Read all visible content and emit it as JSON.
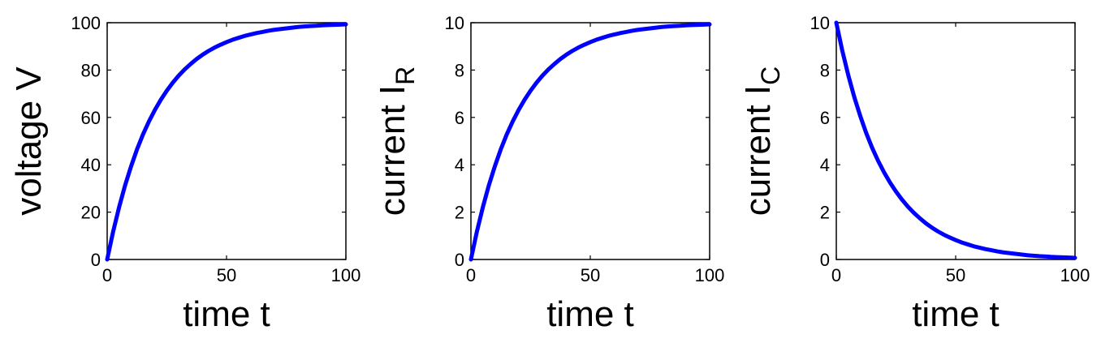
{
  "chart_data": [
    {
      "type": "line",
      "xlabel": "time t",
      "ylabel": "voltage V",
      "ylabel_subscript": "",
      "xlim": [
        0,
        100
      ],
      "ylim": [
        0,
        100
      ],
      "xticks": [
        "0",
        "50",
        "100"
      ],
      "yticks": [
        "0",
        "20",
        "40",
        "60",
        "80",
        "100"
      ],
      "grid": false,
      "color": "#0000ff",
      "series": [
        {
          "x": [
            0,
            2.5,
            5,
            7.5,
            10,
            12.5,
            15,
            17.5,
            20,
            22.5,
            25,
            27.5,
            30,
            32.5,
            35,
            37.5,
            40,
            42.5,
            45,
            47.5,
            50,
            52.5,
            55,
            57.5,
            60,
            62.5,
            65,
            67.5,
            70,
            72.5,
            75,
            77.5,
            80,
            82.5,
            85,
            87.5,
            90,
            92.5,
            95,
            97.5,
            100
          ],
          "y": [
            0,
            11.8,
            22.1,
            31.3,
            39.3,
            46.5,
            52.8,
            58.3,
            63.2,
            67.5,
            71.3,
            74.7,
            77.7,
            80.3,
            82.6,
            84.7,
            86.5,
            88.1,
            89.5,
            90.7,
            91.8,
            92.8,
            93.6,
            94.4,
            95.0,
            95.6,
            96.1,
            96.6,
            97.0,
            97.3,
            97.6,
            97.9,
            98.2,
            98.4,
            98.6,
            98.7,
            98.9,
            99.0,
            99.1,
            99.2,
            99.3
          ]
        }
      ]
    },
    {
      "type": "line",
      "xlabel": "time t",
      "ylabel": "current I",
      "ylabel_subscript": "R",
      "xlim": [
        0,
        100
      ],
      "ylim": [
        0,
        10
      ],
      "xticks": [
        "0",
        "50",
        "100"
      ],
      "yticks": [
        "0",
        "2",
        "4",
        "6",
        "8",
        "10"
      ],
      "grid": false,
      "color": "#0000ff",
      "series": [
        {
          "x": [
            0,
            2.5,
            5,
            7.5,
            10,
            12.5,
            15,
            17.5,
            20,
            22.5,
            25,
            27.5,
            30,
            32.5,
            35,
            37.5,
            40,
            42.5,
            45,
            47.5,
            50,
            52.5,
            55,
            57.5,
            60,
            62.5,
            65,
            67.5,
            70,
            72.5,
            75,
            77.5,
            80,
            82.5,
            85,
            87.5,
            90,
            92.5,
            95,
            97.5,
            100
          ],
          "y": [
            0,
            1.18,
            2.21,
            3.13,
            3.93,
            4.65,
            5.28,
            5.83,
            6.32,
            6.75,
            7.13,
            7.47,
            7.77,
            8.03,
            8.26,
            8.47,
            8.65,
            8.81,
            8.95,
            9.07,
            9.18,
            9.28,
            9.36,
            9.44,
            9.5,
            9.56,
            9.61,
            9.66,
            9.7,
            9.73,
            9.76,
            9.79,
            9.82,
            9.84,
            9.86,
            9.87,
            9.89,
            9.9,
            9.91,
            9.92,
            9.93
          ]
        }
      ]
    },
    {
      "type": "line",
      "xlabel": "time t",
      "ylabel": "current I",
      "ylabel_subscript": "C",
      "xlim": [
        0,
        100
      ],
      "ylim": [
        0,
        10
      ],
      "xticks": [
        "0",
        "50",
        "100"
      ],
      "yticks": [
        "0",
        "2",
        "4",
        "6",
        "8",
        "10"
      ],
      "grid": false,
      "color": "#0000ff",
      "series": [
        {
          "x": [
            0,
            2.5,
            5,
            7.5,
            10,
            12.5,
            15,
            17.5,
            20,
            22.5,
            25,
            27.5,
            30,
            32.5,
            35,
            37.5,
            40,
            42.5,
            45,
            47.5,
            50,
            52.5,
            55,
            57.5,
            60,
            62.5,
            65,
            67.5,
            70,
            72.5,
            75,
            77.5,
            80,
            82.5,
            85,
            87.5,
            90,
            92.5,
            95,
            97.5,
            100
          ],
          "y": [
            10,
            8.82,
            7.79,
            6.87,
            6.07,
            5.35,
            4.72,
            4.17,
            3.68,
            3.25,
            2.87,
            2.53,
            2.23,
            1.97,
            1.74,
            1.53,
            1.35,
            1.19,
            1.05,
            0.93,
            0.82,
            0.72,
            0.64,
            0.56,
            0.5,
            0.44,
            0.39,
            0.34,
            0.3,
            0.27,
            0.24,
            0.21,
            0.18,
            0.16,
            0.14,
            0.13,
            0.11,
            0.1,
            0.09,
            0.08,
            0.07
          ]
        }
      ]
    }
  ]
}
